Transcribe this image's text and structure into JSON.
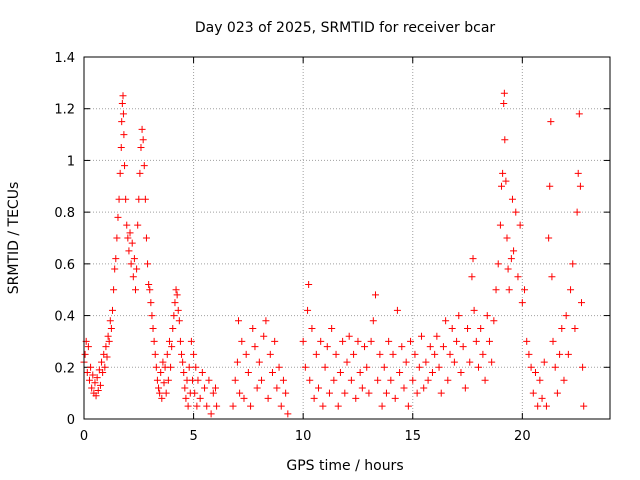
{
  "chart_data": {
    "type": "scatter",
    "title": "Day 023 of 2025, SRMTID for receiver bcar",
    "xlabel": "GPS time / hours",
    "ylabel": "SRMTID / TECUs",
    "xlim": [
      0,
      24
    ],
    "ylim": [
      0,
      1.4
    ],
    "x_ticks": [
      0,
      5,
      10,
      15,
      20
    ],
    "x_tick_labels": [
      "0",
      "5",
      "10",
      "15",
      "20"
    ],
    "y_ticks": [
      0,
      0.2,
      0.4,
      0.6,
      0.8,
      1.0,
      1.2,
      1.4
    ],
    "y_tick_labels": [
      "0",
      "0.2",
      "0.4",
      "0.6",
      "0.8",
      "1",
      "1.2",
      "1.4"
    ],
    "grid": true,
    "marker": "+",
    "marker_color": "#ff0000",
    "series": [
      {
        "name": "SRMTID",
        "points": [
          [
            0.0,
            0.22
          ],
          [
            0.05,
            0.25
          ],
          [
            0.1,
            0.3
          ],
          [
            0.15,
            0.18
          ],
          [
            0.2,
            0.28
          ],
          [
            0.25,
            0.15
          ],
          [
            0.3,
            0.2
          ],
          [
            0.35,
            0.12
          ],
          [
            0.4,
            0.17
          ],
          [
            0.45,
            0.1
          ],
          [
            0.5,
            0.14
          ],
          [
            0.55,
            0.09
          ],
          [
            0.6,
            0.16
          ],
          [
            0.65,
            0.11
          ],
          [
            0.7,
            0.19
          ],
          [
            0.75,
            0.13
          ],
          [
            0.8,
            0.22
          ],
          [
            0.85,
            0.18
          ],
          [
            0.9,
            0.25
          ],
          [
            0.95,
            0.2
          ],
          [
            1.0,
            0.28
          ],
          [
            1.05,
            0.24
          ],
          [
            1.1,
            0.32
          ],
          [
            1.15,
            0.3
          ],
          [
            1.2,
            0.38
          ],
          [
            1.25,
            0.35
          ],
          [
            1.3,
            0.42
          ],
          [
            1.35,
            0.5
          ],
          [
            1.4,
            0.58
          ],
          [
            1.45,
            0.62
          ],
          [
            1.5,
            0.7
          ],
          [
            1.55,
            0.78
          ],
          [
            1.6,
            0.85
          ],
          [
            1.65,
            0.95
          ],
          [
            1.7,
            1.05
          ],
          [
            1.72,
            1.15
          ],
          [
            1.75,
            1.22
          ],
          [
            1.78,
            1.25
          ],
          [
            1.8,
            1.18
          ],
          [
            1.82,
            1.1
          ],
          [
            1.85,
            0.98
          ],
          [
            1.9,
            0.85
          ],
          [
            1.95,
            0.75
          ],
          [
            2.0,
            0.7
          ],
          [
            2.05,
            0.65
          ],
          [
            2.1,
            0.72
          ],
          [
            2.15,
            0.6
          ],
          [
            2.2,
            0.68
          ],
          [
            2.25,
            0.55
          ],
          [
            2.3,
            0.62
          ],
          [
            2.35,
            0.5
          ],
          [
            2.4,
            0.58
          ],
          [
            2.45,
            0.75
          ],
          [
            2.5,
            0.85
          ],
          [
            2.55,
            0.95
          ],
          [
            2.6,
            1.05
          ],
          [
            2.65,
            1.12
          ],
          [
            2.7,
            1.08
          ],
          [
            2.75,
            0.98
          ],
          [
            2.8,
            0.85
          ],
          [
            2.85,
            0.7
          ],
          [
            2.9,
            0.6
          ],
          [
            2.95,
            0.52
          ],
          [
            3.0,
            0.5
          ],
          [
            3.05,
            0.45
          ],
          [
            3.1,
            0.4
          ],
          [
            3.15,
            0.35
          ],
          [
            3.2,
            0.3
          ],
          [
            3.25,
            0.25
          ],
          [
            3.3,
            0.2
          ],
          [
            3.35,
            0.15
          ],
          [
            3.4,
            0.12
          ],
          [
            3.45,
            0.1
          ],
          [
            3.5,
            0.18
          ],
          [
            3.55,
            0.08
          ],
          [
            3.6,
            0.22
          ],
          [
            3.65,
            0.14
          ],
          [
            3.7,
            0.2
          ],
          [
            3.75,
            0.1
          ],
          [
            3.8,
            0.25
          ],
          [
            3.85,
            0.15
          ],
          [
            3.9,
            0.3
          ],
          [
            3.95,
            0.2
          ],
          [
            4.0,
            0.28
          ],
          [
            4.05,
            0.35
          ],
          [
            4.1,
            0.4
          ],
          [
            4.15,
            0.45
          ],
          [
            4.2,
            0.5
          ],
          [
            4.25,
            0.48
          ],
          [
            4.3,
            0.42
          ],
          [
            4.35,
            0.38
          ],
          [
            4.4,
            0.3
          ],
          [
            4.45,
            0.25
          ],
          [
            4.5,
            0.22
          ],
          [
            4.55,
            0.18
          ],
          [
            4.6,
            0.12
          ],
          [
            4.65,
            0.08
          ],
          [
            4.7,
            0.15
          ],
          [
            4.75,
            0.05
          ],
          [
            4.8,
            0.2
          ],
          [
            4.85,
            0.1
          ],
          [
            4.9,
            0.3
          ],
          [
            4.95,
            0.15
          ],
          [
            5.0,
            0.25
          ],
          [
            5.05,
            0.1
          ],
          [
            5.1,
            0.2
          ],
          [
            5.15,
            0.05
          ],
          [
            5.2,
            0.15
          ],
          [
            5.3,
            0.08
          ],
          [
            5.4,
            0.18
          ],
          [
            5.5,
            0.12
          ],
          [
            5.6,
            0.05
          ],
          [
            5.7,
            0.15
          ],
          [
            5.8,
            0.02
          ],
          [
            5.9,
            0.1
          ],
          [
            6.0,
            0.12
          ],
          [
            6.05,
            0.05
          ],
          [
            6.8,
            0.05
          ],
          [
            6.9,
            0.15
          ],
          [
            7.0,
            0.22
          ],
          [
            7.05,
            0.38
          ],
          [
            7.1,
            0.1
          ],
          [
            7.2,
            0.3
          ],
          [
            7.3,
            0.08
          ],
          [
            7.4,
            0.25
          ],
          [
            7.5,
            0.18
          ],
          [
            7.6,
            0.05
          ],
          [
            7.7,
            0.35
          ],
          [
            7.8,
            0.28
          ],
          [
            7.9,
            0.12
          ],
          [
            8.0,
            0.22
          ],
          [
            8.1,
            0.15
          ],
          [
            8.2,
            0.32
          ],
          [
            8.3,
            0.38
          ],
          [
            8.4,
            0.08
          ],
          [
            8.5,
            0.25
          ],
          [
            8.6,
            0.18
          ],
          [
            8.7,
            0.3
          ],
          [
            8.8,
            0.12
          ],
          [
            8.9,
            0.2
          ],
          [
            9.0,
            0.05
          ],
          [
            9.1,
            0.15
          ],
          [
            9.2,
            0.1
          ],
          [
            9.3,
            0.02
          ],
          [
            10.0,
            0.3
          ],
          [
            10.1,
            0.2
          ],
          [
            10.2,
            0.42
          ],
          [
            10.25,
            0.52
          ],
          [
            10.3,
            0.15
          ],
          [
            10.4,
            0.35
          ],
          [
            10.5,
            0.08
          ],
          [
            10.6,
            0.25
          ],
          [
            10.7,
            0.12
          ],
          [
            10.8,
            0.3
          ],
          [
            10.9,
            0.05
          ],
          [
            11.0,
            0.2
          ],
          [
            11.1,
            0.28
          ],
          [
            11.2,
            0.1
          ],
          [
            11.3,
            0.35
          ],
          [
            11.4,
            0.15
          ],
          [
            11.5,
            0.25
          ],
          [
            11.6,
            0.05
          ],
          [
            11.7,
            0.18
          ],
          [
            11.8,
            0.3
          ],
          [
            11.9,
            0.1
          ],
          [
            12.0,
            0.22
          ],
          [
            12.1,
            0.32
          ],
          [
            12.2,
            0.15
          ],
          [
            12.3,
            0.25
          ],
          [
            12.4,
            0.08
          ],
          [
            12.5,
            0.3
          ],
          [
            12.6,
            0.18
          ],
          [
            12.7,
            0.12
          ],
          [
            12.8,
            0.28
          ],
          [
            12.9,
            0.2
          ],
          [
            13.0,
            0.1
          ],
          [
            13.1,
            0.3
          ],
          [
            13.2,
            0.38
          ],
          [
            13.3,
            0.48
          ],
          [
            13.4,
            0.15
          ],
          [
            13.5,
            0.25
          ],
          [
            13.6,
            0.05
          ],
          [
            13.7,
            0.2
          ],
          [
            13.8,
            0.1
          ],
          [
            13.9,
            0.3
          ],
          [
            14.0,
            0.15
          ],
          [
            14.1,
            0.25
          ],
          [
            14.2,
            0.08
          ],
          [
            14.3,
            0.42
          ],
          [
            14.4,
            0.18
          ],
          [
            14.5,
            0.28
          ],
          [
            14.6,
            0.12
          ],
          [
            14.7,
            0.22
          ],
          [
            14.8,
            0.05
          ],
          [
            14.9,
            0.3
          ],
          [
            15.0,
            0.15
          ],
          [
            15.1,
            0.25
          ],
          [
            15.2,
            0.1
          ],
          [
            15.3,
            0.2
          ],
          [
            15.4,
            0.32
          ],
          [
            15.5,
            0.12
          ],
          [
            15.6,
            0.22
          ],
          [
            15.7,
            0.15
          ],
          [
            15.8,
            0.28
          ],
          [
            15.9,
            0.18
          ],
          [
            16.0,
            0.25
          ],
          [
            16.1,
            0.32
          ],
          [
            16.2,
            0.2
          ],
          [
            16.3,
            0.1
          ],
          [
            16.4,
            0.28
          ],
          [
            16.5,
            0.38
          ],
          [
            16.6,
            0.15
          ],
          [
            16.7,
            0.25
          ],
          [
            16.8,
            0.35
          ],
          [
            16.9,
            0.22
          ],
          [
            17.0,
            0.3
          ],
          [
            17.1,
            0.4
          ],
          [
            17.2,
            0.18
          ],
          [
            17.3,
            0.28
          ],
          [
            17.4,
            0.12
          ],
          [
            17.5,
            0.35
          ],
          [
            17.6,
            0.22
          ],
          [
            17.7,
            0.55
          ],
          [
            17.75,
            0.62
          ],
          [
            17.8,
            0.42
          ],
          [
            17.9,
            0.3
          ],
          [
            18.0,
            0.2
          ],
          [
            18.1,
            0.35
          ],
          [
            18.2,
            0.25
          ],
          [
            18.3,
            0.15
          ],
          [
            18.4,
            0.4
          ],
          [
            18.5,
            0.3
          ],
          [
            18.6,
            0.22
          ],
          [
            18.7,
            0.38
          ],
          [
            18.8,
            0.5
          ],
          [
            18.9,
            0.6
          ],
          [
            19.0,
            0.75
          ],
          [
            19.05,
            0.9
          ],
          [
            19.1,
            0.95
          ],
          [
            19.15,
            1.22
          ],
          [
            19.18,
            1.26
          ],
          [
            19.2,
            1.08
          ],
          [
            19.25,
            0.92
          ],
          [
            19.3,
            0.7
          ],
          [
            19.35,
            0.58
          ],
          [
            19.4,
            0.5
          ],
          [
            19.5,
            0.62
          ],
          [
            19.55,
            0.85
          ],
          [
            19.6,
            0.65
          ],
          [
            19.7,
            0.8
          ],
          [
            19.8,
            0.55
          ],
          [
            19.9,
            0.75
          ],
          [
            20.0,
            0.45
          ],
          [
            20.1,
            0.5
          ],
          [
            20.2,
            0.3
          ],
          [
            20.3,
            0.25
          ],
          [
            20.4,
            0.2
          ],
          [
            20.5,
            0.1
          ],
          [
            20.6,
            0.18
          ],
          [
            20.7,
            0.05
          ],
          [
            20.8,
            0.15
          ],
          [
            20.9,
            0.08
          ],
          [
            21.0,
            0.22
          ],
          [
            21.1,
            0.05
          ],
          [
            21.2,
            0.7
          ],
          [
            21.25,
            0.9
          ],
          [
            21.3,
            1.15
          ],
          [
            21.35,
            0.55
          ],
          [
            21.4,
            0.3
          ],
          [
            21.5,
            0.2
          ],
          [
            21.6,
            0.1
          ],
          [
            21.7,
            0.25
          ],
          [
            21.8,
            0.35
          ],
          [
            21.9,
            0.15
          ],
          [
            22.0,
            0.4
          ],
          [
            22.1,
            0.25
          ],
          [
            22.2,
            0.5
          ],
          [
            22.3,
            0.6
          ],
          [
            22.4,
            0.35
          ],
          [
            22.5,
            0.8
          ],
          [
            22.55,
            0.95
          ],
          [
            22.6,
            1.18
          ],
          [
            22.65,
            0.9
          ],
          [
            22.7,
            0.45
          ],
          [
            22.75,
            0.2
          ],
          [
            22.8,
            0.05
          ]
        ]
      }
    ]
  }
}
